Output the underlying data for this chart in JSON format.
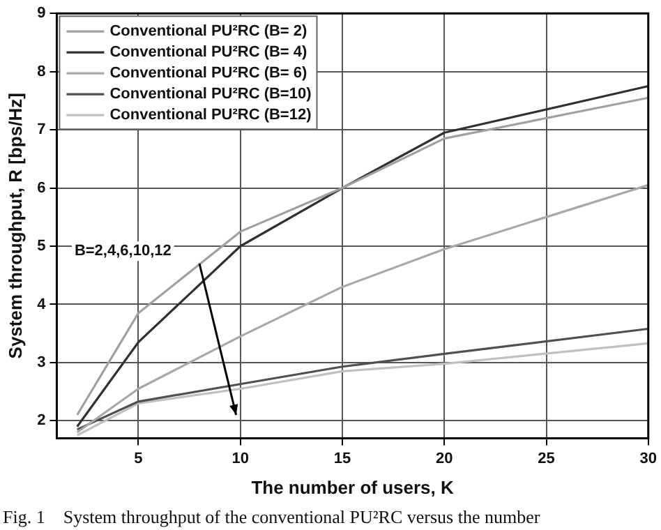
{
  "chart_data": {
    "type": "line",
    "xlabel": "The number of users, K",
    "ylabel": "System throughput, R [bps/Hz]",
    "x": [
      2,
      5,
      10,
      15,
      20,
      30
    ],
    "series": [
      {
        "name": "Conventional PU²RC (B= 2)",
        "color": "#a0a0a0",
        "values": [
          2.1,
          3.85,
          5.25,
          6.0,
          6.85,
          7.55
        ]
      },
      {
        "name": "Conventional PU²RC (B= 4)",
        "color": "#303030",
        "values": [
          1.9,
          3.35,
          5.0,
          6.0,
          6.95,
          7.75
        ]
      },
      {
        "name": "Conventional PU²RC (B= 6)",
        "color": "#a8a8a8",
        "values": [
          1.8,
          2.55,
          3.45,
          4.3,
          4.95,
          6.05
        ]
      },
      {
        "name": "Conventional PU²RC (B=10)",
        "color": "#505050",
        "values": [
          1.85,
          2.33,
          2.63,
          2.93,
          3.15,
          3.58
        ]
      },
      {
        "name": "Conventional PU²RC (B=12)",
        "color": "#c0c0c0",
        "values": [
          1.75,
          2.3,
          2.55,
          2.85,
          2.98,
          3.33
        ]
      }
    ],
    "xlim": [
      1,
      30
    ],
    "xticks": [
      5,
      10,
      15,
      20,
      25,
      30
    ],
    "ylim": [
      1.7,
      9
    ],
    "yticks": [
      2,
      3,
      4,
      5,
      6,
      7,
      8,
      9
    ],
    "grid": true,
    "legend": "top left",
    "marker": "none",
    "line_style": "solid",
    "annotations": [
      "B=2,4,6,10,12",
      "Fig. 1    System throughput of the conventional PU²RC versus the number"
    ]
  }
}
